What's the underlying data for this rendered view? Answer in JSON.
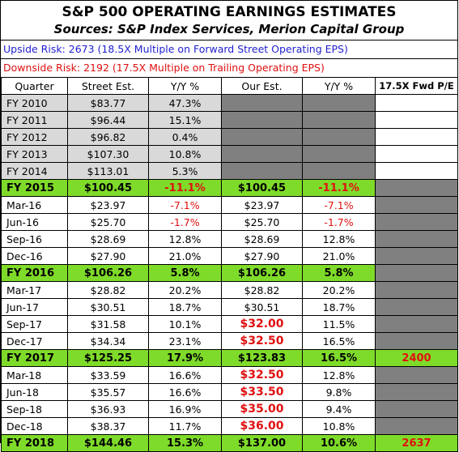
{
  "title": "S&P 500 OPERATING EARNINGS ESTIMATES",
  "subtitle": "Sources: S&P Index Services, Merion Capital Group",
  "upside_risk": "Upside Risk: 2673 (18.5X Multiple on Forward Street Operating EPS)",
  "downside_risk": "Downside Risk: 2192 (17.5X Multiple on Trailing Operating EPS)",
  "headers": [
    "Quarter",
    "Street Est.",
    "Y/Y %",
    "Our Est.",
    "Y/Y %",
    "17.5X Fwd P/E"
  ],
  "rows": [
    {
      "q": "FY 2010",
      "street": "$83.77",
      "yy1": "47.3%",
      "ours": "",
      "yy2": "",
      "pe": "",
      "kind": "grey"
    },
    {
      "q": "FY 2011",
      "street": "$96.44",
      "yy1": "15.1%",
      "ours": "",
      "yy2": "",
      "pe": "",
      "kind": "grey"
    },
    {
      "q": "FY 2012",
      "street": "$96.82",
      "yy1": "0.4%",
      "ours": "",
      "yy2": "",
      "pe": "",
      "kind": "grey"
    },
    {
      "q": "FY 2013",
      "street": "$107.30",
      "yy1": "10.8%",
      "ours": "",
      "yy2": "",
      "pe": "",
      "kind": "grey"
    },
    {
      "q": "FY 2014",
      "street": "$113.01",
      "yy1": "5.3%",
      "ours": "",
      "yy2": "",
      "pe": "",
      "kind": "grey"
    },
    {
      "q": "FY 2015",
      "street": "$100.45",
      "yy1": "-11.1%",
      "ours": "$100.45",
      "yy2": "-11.1%",
      "pe": "",
      "kind": "year"
    },
    {
      "q": "Mar-16",
      "street": "$23.97",
      "yy1": "-7.1%",
      "ours": "$23.97",
      "yy2": "-7.1%",
      "pe": "",
      "kind": "q"
    },
    {
      "q": "Jun-16",
      "street": "$25.70",
      "yy1": "-1.7%",
      "ours": "$25.70",
      "yy2": "-1.7%",
      "pe": "",
      "kind": "q"
    },
    {
      "q": "Sep-16",
      "street": "$28.69",
      "yy1": "12.8%",
      "ours": "$28.69",
      "yy2": "12.8%",
      "pe": "",
      "kind": "q"
    },
    {
      "q": "Dec-16",
      "street": "$27.90",
      "yy1": "21.0%",
      "ours": "$27.90",
      "yy2": "21.0%",
      "pe": "",
      "kind": "q"
    },
    {
      "q": "FY 2016",
      "street": "$106.26",
      "yy1": "5.8%",
      "ours": "$106.26",
      "yy2": "5.8%",
      "pe": "",
      "kind": "year"
    },
    {
      "q": "Mar-17",
      "street": "$28.82",
      "yy1": "20.2%",
      "ours": "$28.82",
      "yy2": "20.2%",
      "pe": "",
      "kind": "q"
    },
    {
      "q": "Jun-17",
      "street": "$30.51",
      "yy1": "18.7%",
      "ours": "$30.51",
      "yy2": "18.7%",
      "pe": "",
      "kind": "q"
    },
    {
      "q": "Sep-17",
      "street": "$31.58",
      "yy1": "10.1%",
      "ours": "$32.00",
      "yy2": "11.5%",
      "pe": "",
      "kind": "q",
      "ours_red": true
    },
    {
      "q": "Dec-17",
      "street": "$34.34",
      "yy1": "23.1%",
      "ours": "$32.50",
      "yy2": "16.5%",
      "pe": "",
      "kind": "q",
      "ours_red": true
    },
    {
      "q": "FY 2017",
      "street": "$125.25",
      "yy1": "17.9%",
      "ours": "$123.83",
      "yy2": "16.5%",
      "pe": "2400",
      "kind": "year"
    },
    {
      "q": "Mar-18",
      "street": "$33.59",
      "yy1": "16.6%",
      "ours": "$32.50",
      "yy2": "12.8%",
      "pe": "",
      "kind": "q",
      "ours_red": true
    },
    {
      "q": "Jun-18",
      "street": "$35.57",
      "yy1": "16.6%",
      "ours": "$33.50",
      "yy2": "9.8%",
      "pe": "",
      "kind": "q",
      "ours_red": true
    },
    {
      "q": "Sep-18",
      "street": "$36.93",
      "yy1": "16.9%",
      "ours": "$35.00",
      "yy2": "9.4%",
      "pe": "",
      "kind": "q",
      "ours_red": true
    },
    {
      "q": "Dec-18",
      "street": "$38.37",
      "yy1": "11.7%",
      "ours": "$36.00",
      "yy2": "10.8%",
      "pe": "",
      "kind": "q",
      "ours_red": true
    },
    {
      "q": "FY 2018",
      "street": "$144.46",
      "yy1": "15.3%",
      "ours": "$137.00",
      "yy2": "10.6%",
      "pe": "2637",
      "kind": "year"
    }
  ],
  "colors": {
    "year_row": "#7fdb2a",
    "grey_cell": "#d9d9d9",
    "dark_cell": "#808080",
    "negative": "#e01010",
    "upside": "#1f1fd0",
    "downside": "#e01010"
  }
}
